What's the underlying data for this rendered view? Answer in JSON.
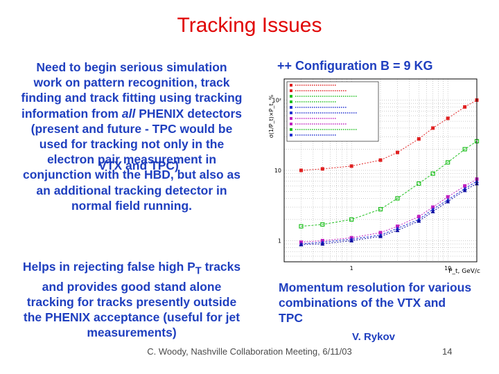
{
  "slide": {
    "title": "Tracking Issues",
    "left_text": {
      "para1": "Need to begin serious simulation work on pattern recognition, track finding and track fitting using tracking information from ",
      "para1_emph": "all",
      "para1_rest": " PHENIX detectors (present and future - TPC would be used for tracking not only in the electron pair measurement in conjunction with the HBD, but also as an additional tracking detector in normal field running.",
      "overlap": "VTX and TPC)",
      "para2_a": "Helps in rejecting false high P",
      "para2_sub": "T",
      "para2_b": " tracks and provides good stand alone tracking for tracks presently outside the PHENIX acceptance (useful for jet measurements)"
    },
    "config_label": "++ Configuration  B = 9 KG",
    "momentum_caption": "Momentum resolution for various combinations of the VTX and TPC",
    "author": "V. Rykov",
    "footer": "C. Woody, Nashville Collaboration Meeting, 6/11/03",
    "page_number": "14"
  },
  "chart_data": {
    "type": "scatter",
    "ylabel": "σ(1/P_t)×P_t, %",
    "xlabel": "P_t, GeV/c",
    "x_log": true,
    "y_log": true,
    "x_tick_labels": [
      "1",
      "10"
    ],
    "y_tick_labels": [
      "1",
      "10",
      "10²"
    ],
    "xlim": [
      0.2,
      20
    ],
    "ylim": [
      0.5,
      200
    ],
    "grid": true,
    "legend_position": "top-left",
    "series": [
      {
        "color": "#e02020",
        "x": [
          0.3,
          0.5,
          1,
          2,
          3,
          5,
          7,
          10,
          15,
          20
        ],
        "y": [
          10,
          10.5,
          11.5,
          14,
          18,
          28,
          40,
          55,
          80,
          100
        ]
      },
      {
        "color": "#20c020",
        "x": [
          0.3,
          0.5,
          1,
          2,
          3,
          5,
          7,
          10,
          15,
          20
        ],
        "y": [
          1.6,
          1.7,
          2.0,
          2.8,
          4,
          6.5,
          9,
          13,
          20,
          26
        ]
      },
      {
        "color": "#c020c0",
        "x": [
          0.3,
          0.5,
          1,
          2,
          3,
          5,
          7,
          10,
          15,
          20
        ],
        "y": [
          0.95,
          1.0,
          1.1,
          1.3,
          1.6,
          2.2,
          3.0,
          4.2,
          6.0,
          7.5
        ]
      },
      {
        "color": "#2030d0",
        "x": [
          0.3,
          0.5,
          1,
          2,
          3,
          5,
          7,
          10,
          15,
          20
        ],
        "y": [
          0.9,
          0.95,
          1.05,
          1.2,
          1.5,
          2.0,
          2.8,
          3.8,
          5.5,
          7.0
        ]
      },
      {
        "color": "#1010a0",
        "x": [
          0.3,
          0.5,
          1,
          2,
          3,
          5,
          7,
          10,
          15,
          20
        ],
        "y": [
          0.88,
          0.9,
          1.0,
          1.15,
          1.4,
          1.9,
          2.6,
          3.6,
          5.2,
          6.5
        ]
      }
    ],
    "colors": {
      "title": "#e00000",
      "text": "#1f3fbf",
      "footer": "#4a4a4a"
    }
  }
}
